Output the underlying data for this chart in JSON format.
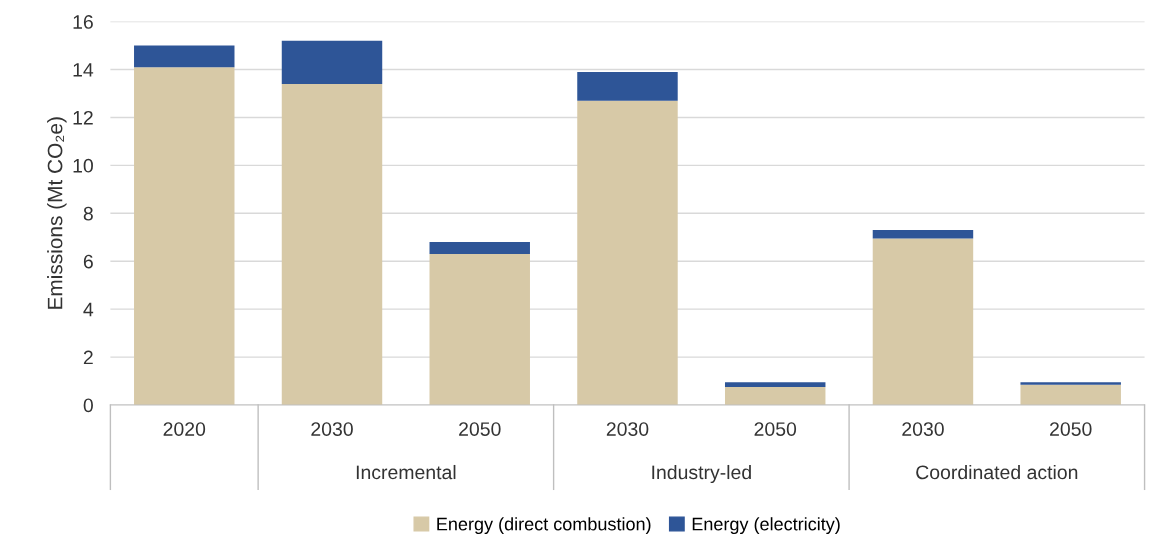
{
  "chart_data": {
    "type": "bar",
    "stacked": true,
    "ylabel": "Emissions (Mt CO₂e)",
    "categories": [
      "2020",
      "2030",
      "2050",
      "2030",
      "2050",
      "2030",
      "2050"
    ],
    "series": [
      {
        "name": "Energy (direct combustion)",
        "color": "#d7c9a7",
        "values": [
          14.1,
          13.4,
          6.3,
          12.7,
          0.75,
          6.95,
          0.85
        ]
      },
      {
        "name": "Energy (electricity)",
        "color": "#2e5597",
        "values": [
          0.9,
          1.8,
          0.5,
          1.2,
          0.2,
          0.35,
          0.1
        ]
      }
    ],
    "ylim": [
      0,
      16
    ],
    "yticks": [
      0,
      2,
      4,
      6,
      8,
      10,
      12,
      14,
      16
    ],
    "grid": "y",
    "legend": "bottom",
    "annotations": [
      "Incremental",
      "Industry-led",
      "Coordinated action"
    ]
  }
}
